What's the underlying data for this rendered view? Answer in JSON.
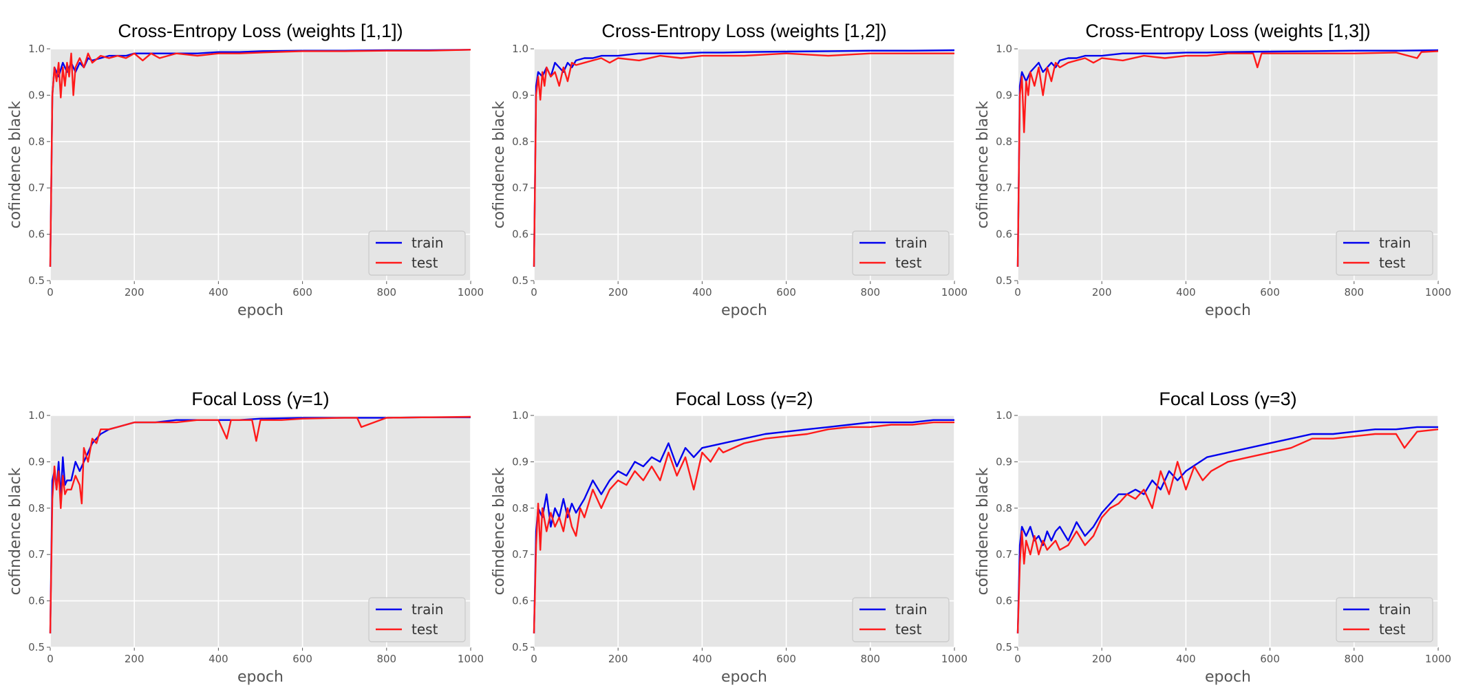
{
  "figure": {
    "background": "#ffffff",
    "plot_background": "#e5e5e5",
    "grid_color": "#ffffff",
    "train_color": "#0000ee",
    "test_color": "#ff1a1a"
  },
  "chart_data": [
    {
      "type": "line",
      "title": "Cross-Entropy Loss (weights [1,1])",
      "xlabel": "epoch",
      "ylabel": "cofindence black",
      "xlim": [
        0,
        1000
      ],
      "ylim": [
        0.5,
        1.0
      ],
      "xticks": [
        "0",
        "200",
        "400",
        "600",
        "800",
        "1000"
      ],
      "yticks": [
        "0.5",
        "0.6",
        "0.7",
        "0.8",
        "0.9",
        "1.0"
      ],
      "grid": true,
      "legend": "lower-right",
      "series": [
        {
          "name": "train",
          "color": "#0000ee",
          "x": [
            0,
            5,
            10,
            20,
            30,
            40,
            50,
            60,
            70,
            80,
            90,
            100,
            120,
            140,
            160,
            180,
            200,
            250,
            300,
            350,
            400,
            450,
            500,
            600,
            700,
            800,
            900,
            1000
          ],
          "y": [
            0.53,
            0.9,
            0.96,
            0.94,
            0.97,
            0.95,
            0.97,
            0.95,
            0.97,
            0.96,
            0.98,
            0.975,
            0.98,
            0.985,
            0.985,
            0.985,
            0.99,
            0.99,
            0.99,
            0.99,
            0.993,
            0.993,
            0.995,
            0.996,
            0.996,
            0.997,
            0.997,
            0.998
          ]
        },
        {
          "name": "test",
          "color": "#ff1a1a",
          "x": [
            0,
            5,
            10,
            15,
            20,
            25,
            30,
            35,
            40,
            45,
            50,
            55,
            60,
            65,
            70,
            80,
            90,
            100,
            120,
            140,
            160,
            180,
            200,
            220,
            240,
            260,
            300,
            350,
            400,
            450,
            500,
            600,
            700,
            800,
            900,
            1000
          ],
          "y": [
            0.53,
            0.9,
            0.96,
            0.93,
            0.97,
            0.895,
            0.96,
            0.92,
            0.97,
            0.94,
            0.99,
            0.9,
            0.96,
            0.97,
            0.98,
            0.96,
            0.99,
            0.97,
            0.985,
            0.98,
            0.985,
            0.98,
            0.99,
            0.975,
            0.99,
            0.98,
            0.99,
            0.985,
            0.99,
            0.99,
            0.992,
            0.995,
            0.995,
            0.996,
            0.996,
            0.998
          ]
        }
      ]
    },
    {
      "type": "line",
      "title": "Cross-Entropy Loss (weights [1,2])",
      "xlabel": "epoch",
      "ylabel": "cofindence black",
      "xlim": [
        0,
        1000
      ],
      "ylim": [
        0.5,
        1.0
      ],
      "xticks": [
        "0",
        "200",
        "400",
        "600",
        "800",
        "1000"
      ],
      "yticks": [
        "0.5",
        "0.6",
        "0.7",
        "0.8",
        "0.9",
        "1.0"
      ],
      "grid": true,
      "legend": "lower-right",
      "series": [
        {
          "name": "train",
          "color": "#0000ee",
          "x": [
            0,
            5,
            10,
            20,
            30,
            40,
            50,
            60,
            70,
            80,
            90,
            100,
            120,
            140,
            160,
            180,
            200,
            250,
            300,
            350,
            400,
            450,
            500,
            600,
            700,
            800,
            900,
            1000
          ],
          "y": [
            0.53,
            0.92,
            0.95,
            0.94,
            0.96,
            0.94,
            0.97,
            0.96,
            0.95,
            0.97,
            0.96,
            0.975,
            0.98,
            0.98,
            0.985,
            0.985,
            0.985,
            0.99,
            0.99,
            0.99,
            0.992,
            0.992,
            0.993,
            0.994,
            0.995,
            0.996,
            0.996,
            0.997
          ]
        },
        {
          "name": "test",
          "color": "#ff1a1a",
          "x": [
            0,
            5,
            10,
            15,
            20,
            25,
            30,
            40,
            50,
            60,
            70,
            80,
            90,
            100,
            120,
            140,
            160,
            180,
            200,
            250,
            300,
            350,
            400,
            450,
            500,
            600,
            700,
            800,
            900,
            1000
          ],
          "y": [
            0.53,
            0.9,
            0.94,
            0.89,
            0.95,
            0.92,
            0.96,
            0.94,
            0.95,
            0.92,
            0.96,
            0.93,
            0.97,
            0.965,
            0.97,
            0.975,
            0.98,
            0.97,
            0.98,
            0.975,
            0.985,
            0.98,
            0.985,
            0.985,
            0.985,
            0.99,
            0.985,
            0.99,
            0.99,
            0.99
          ]
        }
      ]
    },
    {
      "type": "line",
      "title": "Cross-Entropy Loss (weights [1,3])",
      "xlabel": "epoch",
      "ylabel": "cofindence black",
      "xlim": [
        0,
        1000
      ],
      "ylim": [
        0.5,
        1.0
      ],
      "xticks": [
        "0",
        "200",
        "400",
        "600",
        "800",
        "1000"
      ],
      "yticks": [
        "0.5",
        "0.6",
        "0.7",
        "0.8",
        "0.9",
        "1.0"
      ],
      "grid": true,
      "legend": "lower-right",
      "series": [
        {
          "name": "train",
          "color": "#0000ee",
          "x": [
            0,
            5,
            10,
            20,
            30,
            40,
            50,
            60,
            70,
            80,
            90,
            100,
            120,
            140,
            160,
            180,
            200,
            250,
            300,
            350,
            400,
            450,
            500,
            600,
            700,
            800,
            900,
            1000
          ],
          "y": [
            0.53,
            0.92,
            0.95,
            0.93,
            0.95,
            0.96,
            0.97,
            0.95,
            0.96,
            0.97,
            0.96,
            0.975,
            0.98,
            0.98,
            0.985,
            0.985,
            0.985,
            0.99,
            0.99,
            0.99,
            0.992,
            0.992,
            0.993,
            0.994,
            0.995,
            0.996,
            0.996,
            0.997
          ]
        },
        {
          "name": "test",
          "color": "#ff1a1a",
          "x": [
            0,
            5,
            10,
            15,
            20,
            25,
            30,
            40,
            50,
            60,
            70,
            80,
            90,
            100,
            120,
            140,
            160,
            180,
            200,
            250,
            300,
            350,
            400,
            450,
            500,
            560,
            570,
            580,
            600,
            700,
            800,
            900,
            950,
            960,
            1000
          ],
          "y": [
            0.53,
            0.9,
            0.94,
            0.82,
            0.93,
            0.9,
            0.95,
            0.92,
            0.96,
            0.9,
            0.96,
            0.93,
            0.97,
            0.96,
            0.97,
            0.975,
            0.98,
            0.97,
            0.98,
            0.975,
            0.985,
            0.98,
            0.985,
            0.985,
            0.99,
            0.99,
            0.96,
            0.99,
            0.99,
            0.99,
            0.99,
            0.992,
            0.98,
            0.993,
            0.995
          ]
        }
      ]
    },
    {
      "type": "line",
      "title": "Focal Loss (γ=1)",
      "xlabel": "epoch",
      "ylabel": "cofindence black",
      "xlim": [
        0,
        1000
      ],
      "ylim": [
        0.5,
        1.0
      ],
      "xticks": [
        "0",
        "200",
        "400",
        "600",
        "800",
        "1000"
      ],
      "yticks": [
        "0.5",
        "0.6",
        "0.7",
        "0.8",
        "0.9",
        "1.0"
      ],
      "grid": true,
      "legend": "lower-right",
      "series": [
        {
          "name": "train",
          "color": "#0000ee",
          "x": [
            0,
            5,
            10,
            15,
            20,
            25,
            30,
            35,
            40,
            50,
            60,
            70,
            80,
            90,
            100,
            110,
            120,
            140,
            160,
            180,
            200,
            250,
            300,
            350,
            400,
            450,
            500,
            600,
            700,
            800,
            900,
            1000
          ],
          "y": [
            0.53,
            0.86,
            0.88,
            0.84,
            0.9,
            0.82,
            0.91,
            0.85,
            0.86,
            0.86,
            0.9,
            0.88,
            0.9,
            0.92,
            0.94,
            0.95,
            0.96,
            0.97,
            0.975,
            0.98,
            0.985,
            0.985,
            0.99,
            0.99,
            0.99,
            0.99,
            0.993,
            0.995,
            0.995,
            0.995,
            0.996,
            0.996
          ]
        },
        {
          "name": "test",
          "color": "#ff1a1a",
          "x": [
            0,
            5,
            10,
            15,
            20,
            25,
            30,
            35,
            40,
            50,
            60,
            70,
            75,
            80,
            90,
            100,
            110,
            120,
            140,
            160,
            180,
            200,
            250,
            300,
            350,
            400,
            420,
            430,
            450,
            480,
            490,
            500,
            550,
            600,
            700,
            730,
            740,
            800,
            900,
            1000
          ],
          "y": [
            0.53,
            0.82,
            0.89,
            0.84,
            0.88,
            0.8,
            0.87,
            0.83,
            0.84,
            0.84,
            0.87,
            0.85,
            0.81,
            0.93,
            0.9,
            0.95,
            0.94,
            0.97,
            0.97,
            0.975,
            0.98,
            0.985,
            0.985,
            0.985,
            0.99,
            0.99,
            0.95,
            0.99,
            0.99,
            0.99,
            0.945,
            0.99,
            0.99,
            0.993,
            0.995,
            0.995,
            0.975,
            0.995,
            0.996,
            0.997
          ]
        }
      ]
    },
    {
      "type": "line",
      "title": "Focal Loss (γ=2)",
      "xlabel": "epoch",
      "ylabel": "cofindence black",
      "xlim": [
        0,
        1000
      ],
      "ylim": [
        0.5,
        1.0
      ],
      "xticks": [
        "0",
        "200",
        "400",
        "600",
        "800",
        "1000"
      ],
      "yticks": [
        "0.5",
        "0.6",
        "0.7",
        "0.8",
        "0.9",
        "1.0"
      ],
      "grid": true,
      "legend": "lower-right",
      "series": [
        {
          "name": "train",
          "color": "#0000ee",
          "x": [
            0,
            5,
            10,
            20,
            30,
            40,
            50,
            60,
            70,
            80,
            90,
            100,
            120,
            140,
            160,
            180,
            200,
            220,
            240,
            260,
            280,
            300,
            320,
            340,
            360,
            380,
            400,
            450,
            500,
            550,
            600,
            650,
            700,
            750,
            800,
            850,
            900,
            950,
            1000
          ],
          "y": [
            0.53,
            0.75,
            0.8,
            0.78,
            0.83,
            0.76,
            0.8,
            0.78,
            0.82,
            0.78,
            0.81,
            0.79,
            0.82,
            0.86,
            0.83,
            0.86,
            0.88,
            0.87,
            0.9,
            0.89,
            0.91,
            0.9,
            0.94,
            0.89,
            0.93,
            0.91,
            0.93,
            0.94,
            0.95,
            0.96,
            0.965,
            0.97,
            0.975,
            0.98,
            0.985,
            0.985,
            0.985,
            0.99,
            0.99
          ]
        },
        {
          "name": "test",
          "color": "#ff1a1a",
          "x": [
            0,
            5,
            10,
            15,
            20,
            30,
            40,
            50,
            60,
            70,
            80,
            90,
            100,
            110,
            120,
            140,
            160,
            180,
            200,
            220,
            240,
            260,
            280,
            300,
            320,
            340,
            360,
            380,
            400,
            420,
            440,
            450,
            500,
            550,
            600,
            650,
            700,
            750,
            800,
            850,
            900,
            950,
            1000
          ],
          "y": [
            0.53,
            0.72,
            0.81,
            0.71,
            0.8,
            0.75,
            0.79,
            0.76,
            0.78,
            0.75,
            0.8,
            0.76,
            0.74,
            0.8,
            0.78,
            0.84,
            0.8,
            0.84,
            0.86,
            0.85,
            0.88,
            0.86,
            0.89,
            0.86,
            0.92,
            0.87,
            0.91,
            0.84,
            0.92,
            0.9,
            0.93,
            0.92,
            0.94,
            0.95,
            0.955,
            0.96,
            0.97,
            0.975,
            0.975,
            0.98,
            0.98,
            0.985,
            0.985
          ]
        }
      ]
    },
    {
      "type": "line",
      "title": "Focal Loss (γ=3)",
      "xlabel": "epoch",
      "ylabel": "cofindence black",
      "xlim": [
        0,
        1000
      ],
      "ylim": [
        0.5,
        1.0
      ],
      "xticks": [
        "0",
        "200",
        "400",
        "600",
        "800",
        "1000"
      ],
      "yticks": [
        "0.5",
        "0.6",
        "0.7",
        "0.8",
        "0.9",
        "1.0"
      ],
      "grid": true,
      "legend": "lower-right",
      "series": [
        {
          "name": "train",
          "color": "#0000ee",
          "x": [
            0,
            5,
            10,
            20,
            30,
            40,
            50,
            60,
            70,
            80,
            90,
            100,
            120,
            140,
            160,
            180,
            200,
            220,
            240,
            260,
            280,
            300,
            320,
            340,
            360,
            380,
            400,
            450,
            500,
            550,
            600,
            650,
            700,
            750,
            800,
            850,
            900,
            950,
            1000
          ],
          "y": [
            0.53,
            0.72,
            0.76,
            0.74,
            0.76,
            0.73,
            0.74,
            0.72,
            0.75,
            0.73,
            0.75,
            0.76,
            0.73,
            0.77,
            0.74,
            0.76,
            0.79,
            0.81,
            0.83,
            0.83,
            0.84,
            0.83,
            0.86,
            0.84,
            0.88,
            0.86,
            0.88,
            0.91,
            0.92,
            0.93,
            0.94,
            0.95,
            0.96,
            0.96,
            0.965,
            0.97,
            0.97,
            0.975,
            0.975
          ]
        },
        {
          "name": "test",
          "color": "#ff1a1a",
          "x": [
            0,
            5,
            10,
            15,
            20,
            30,
            40,
            50,
            60,
            70,
            80,
            90,
            100,
            120,
            140,
            160,
            180,
            200,
            220,
            240,
            260,
            280,
            300,
            320,
            340,
            360,
            380,
            400,
            420,
            440,
            460,
            500,
            550,
            600,
            650,
            700,
            750,
            800,
            850,
            900,
            920,
            950,
            1000
          ],
          "y": [
            0.53,
            0.68,
            0.75,
            0.68,
            0.73,
            0.7,
            0.74,
            0.7,
            0.73,
            0.71,
            0.72,
            0.73,
            0.71,
            0.72,
            0.75,
            0.72,
            0.74,
            0.78,
            0.8,
            0.81,
            0.83,
            0.82,
            0.84,
            0.8,
            0.88,
            0.83,
            0.9,
            0.84,
            0.89,
            0.86,
            0.88,
            0.9,
            0.91,
            0.92,
            0.93,
            0.95,
            0.95,
            0.955,
            0.96,
            0.96,
            0.93,
            0.965,
            0.97
          ]
        }
      ]
    }
  ]
}
